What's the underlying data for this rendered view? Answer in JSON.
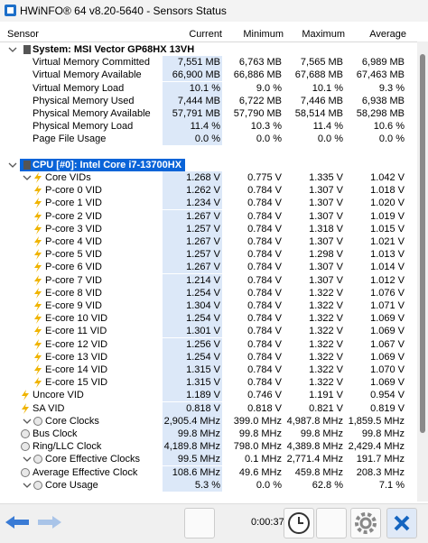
{
  "window": {
    "title": "HWiNFO® 64 v8.20-5640 - Sensors Status"
  },
  "table": {
    "headers": [
      "Sensor",
      "Current",
      "Minimum",
      "Maximum",
      "Average"
    ],
    "groups": [
      {
        "name": "System: MSI Vector GP68HX 13VH",
        "rows": [
          [
            "Virtual Memory Committed",
            "7,551 MB",
            "6,763 MB",
            "7,565 MB",
            "6,989 MB"
          ],
          [
            "Virtual Memory Available",
            "66,900 MB",
            "66,886 MB",
            "67,688 MB",
            "67,463 MB"
          ],
          [
            "Virtual Memory Load",
            "10.1 %",
            "9.0 %",
            "10.1 %",
            "9.3 %"
          ],
          [
            "Physical Memory Used",
            "7,444 MB",
            "6,722 MB",
            "7,446 MB",
            "6,938 MB"
          ],
          [
            "Physical Memory Available",
            "57,791 MB",
            "57,790 MB",
            "58,514 MB",
            "58,298 MB"
          ],
          [
            "Physical Memory Load",
            "11.4 %",
            "10.3 %",
            "11.4 %",
            "10.6 %"
          ],
          [
            "Page File Usage",
            "0.0 %",
            "0.0 %",
            "0.0 %",
            "0.0 %"
          ]
        ]
      },
      {
        "name": "CPU [#0]: Intel Core i7-13700HX",
        "rows": [
          [
            "Core VIDs",
            "1.268 V",
            "0.775 V",
            "1.335 V",
            "1.042 V"
          ],
          [
            "P-core 0 VID",
            "1.262 V",
            "0.784 V",
            "1.307 V",
            "1.018 V"
          ],
          [
            "P-core 1 VID",
            "1.234 V",
            "0.784 V",
            "1.307 V",
            "1.020 V"
          ],
          [
            "P-core 2 VID",
            "1.267 V",
            "0.784 V",
            "1.307 V",
            "1.019 V"
          ],
          [
            "P-core 3 VID",
            "1.257 V",
            "0.784 V",
            "1.318 V",
            "1.015 V"
          ],
          [
            "P-core 4 VID",
            "1.267 V",
            "0.784 V",
            "1.307 V",
            "1.021 V"
          ],
          [
            "P-core 5 VID",
            "1.257 V",
            "0.784 V",
            "1.298 V",
            "1.013 V"
          ],
          [
            "P-core 6 VID",
            "1.267 V",
            "0.784 V",
            "1.307 V",
            "1.014 V"
          ],
          [
            "P-core 7 VID",
            "1.214 V",
            "0.784 V",
            "1.307 V",
            "1.012 V"
          ],
          [
            "E-core 8 VID",
            "1.254 V",
            "0.784 V",
            "1.322 V",
            "1.076 V"
          ],
          [
            "E-core 9 VID",
            "1.304 V",
            "0.784 V",
            "1.322 V",
            "1.071 V"
          ],
          [
            "E-core 10 VID",
            "1.254 V",
            "0.784 V",
            "1.322 V",
            "1.069 V"
          ],
          [
            "E-core 11 VID",
            "1.301 V",
            "0.784 V",
            "1.322 V",
            "1.069 V"
          ],
          [
            "E-core 12 VID",
            "1.256 V",
            "0.784 V",
            "1.322 V",
            "1.067 V"
          ],
          [
            "E-core 13 VID",
            "1.254 V",
            "0.784 V",
            "1.322 V",
            "1.069 V"
          ],
          [
            "E-core 14 VID",
            "1.315 V",
            "0.784 V",
            "1.322 V",
            "1.070 V"
          ],
          [
            "E-core 15 VID",
            "1.315 V",
            "0.784 V",
            "1.322 V",
            "1.069 V"
          ],
          [
            "Uncore VID",
            "1.189 V",
            "0.746 V",
            "1.191 V",
            "0.954 V"
          ],
          [
            "SA VID",
            "0.818 V",
            "0.818 V",
            "0.821 V",
            "0.819 V"
          ],
          [
            "Core Clocks",
            "2,905.4 MHz",
            "399.0 MHz",
            "4,987.8 MHz",
            "1,859.5 MHz"
          ],
          [
            "Bus Clock",
            "99.8 MHz",
            "99.8 MHz",
            "99.8 MHz",
            "99.8 MHz"
          ],
          [
            "Ring/LLC Clock",
            "4,189.8 MHz",
            "798.0 MHz",
            "4,389.8 MHz",
            "2,429.4 MHz"
          ],
          [
            "Core Effective Clocks",
            "99.5 MHz",
            "0.1 MHz",
            "2,771.4 MHz",
            "191.7 MHz"
          ],
          [
            "Average Effective Clock",
            "108.6 MHz",
            "49.6 MHz",
            "459.8 MHz",
            "208.3 MHz"
          ],
          [
            "Core Usage",
            "5.3 %",
            "0.0 %",
            "62.8 %",
            "7.1 %"
          ]
        ]
      }
    ]
  },
  "footer": {
    "timer": "0:00:37"
  }
}
